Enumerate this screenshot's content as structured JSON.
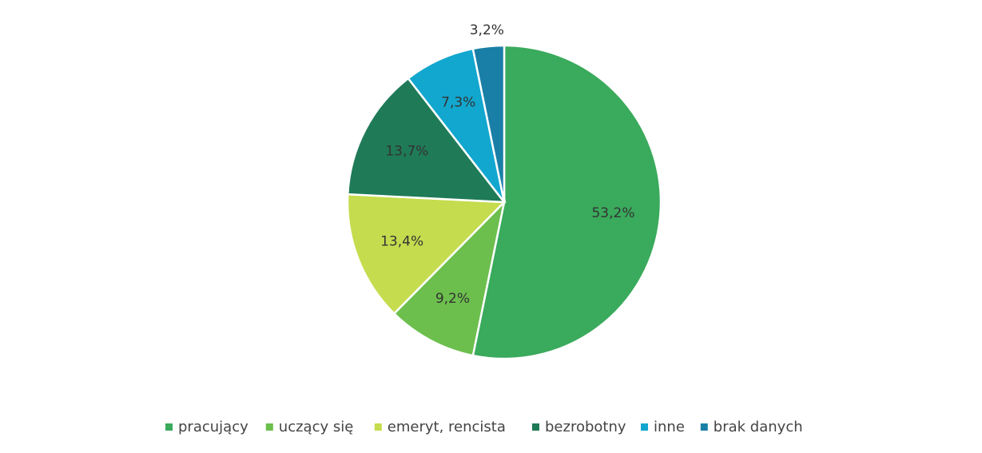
{
  "chart_data": {
    "type": "pie",
    "categories": [
      "pracujący",
      "uczący się",
      "emeryt, rencista",
      "bezrobotny",
      "inne",
      "brak danych"
    ],
    "values": [
      53.2,
      9.2,
      13.4,
      13.7,
      7.3,
      3.2
    ],
    "value_labels": [
      "53,2%",
      "9,2%",
      "13,4%",
      "13,7%",
      "7,3%",
      "3,2%"
    ],
    "colors": [
      "#3aaa5c",
      "#6cbf4d",
      "#c5dc4e",
      "#1f7a58",
      "#12a7cf",
      "#1a7fa6"
    ],
    "legend": "bottom"
  }
}
